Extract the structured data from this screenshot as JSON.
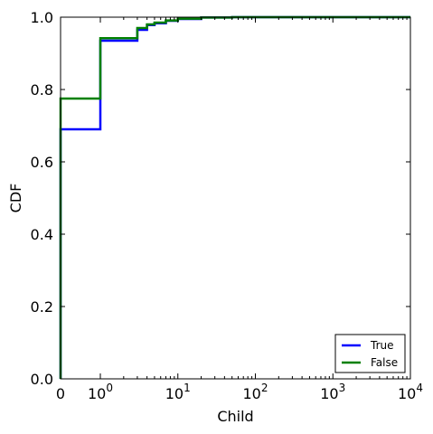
{
  "chart_data": {
    "type": "line",
    "xlabel": "Child",
    "ylabel": "CDF",
    "x_scale": "symlog",
    "xlim": [
      0,
      10000
    ],
    "ylim": [
      0,
      1.0
    ],
    "grid": false,
    "legend_position": "lower-right",
    "x_ticks": [
      {
        "value": 0,
        "base": "0",
        "exp": ""
      },
      {
        "value": 1,
        "base": "10",
        "exp": "0"
      },
      {
        "value": 10,
        "base": "10",
        "exp": "1"
      },
      {
        "value": 100,
        "base": "10",
        "exp": "2"
      },
      {
        "value": 1000,
        "base": "10",
        "exp": "3"
      },
      {
        "value": 10000,
        "base": "10",
        "exp": "4"
      }
    ],
    "y_ticks": [
      "0.0",
      "0.2",
      "0.4",
      "0.6",
      "0.8",
      "1.0"
    ],
    "series": [
      {
        "name": "True",
        "color": "#0000ff",
        "step": true,
        "points": [
          [
            0,
            0.69
          ],
          [
            1,
            0.935
          ],
          [
            3,
            0.965
          ],
          [
            4,
            0.978
          ],
          [
            5,
            0.983
          ],
          [
            7,
            0.99
          ],
          [
            10,
            0.995
          ],
          [
            20,
            0.999
          ],
          [
            50,
            1.0
          ],
          [
            10000,
            1.0
          ]
        ]
      },
      {
        "name": "False",
        "color": "#008000",
        "step": true,
        "points": [
          [
            0,
            0.775
          ],
          [
            1,
            0.942
          ],
          [
            3,
            0.97
          ],
          [
            4,
            0.98
          ],
          [
            5,
            0.985
          ],
          [
            7,
            0.991
          ],
          [
            10,
            0.996
          ],
          [
            20,
            0.999
          ],
          [
            50,
            1.0
          ],
          [
            10000,
            1.0
          ]
        ]
      }
    ]
  }
}
